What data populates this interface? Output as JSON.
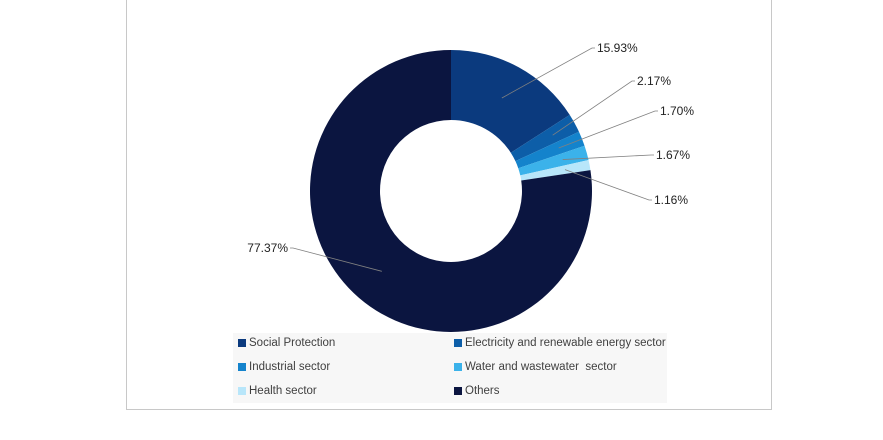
{
  "chart_data": {
    "type": "pie",
    "donut": true,
    "title": "",
    "slices": [
      {
        "name": "Social Protection",
        "value": 15.93,
        "label": "15.93%",
        "color": "#0b3a7e"
      },
      {
        "name": "Electricity and renewable energy sector",
        "value": 2.17,
        "label": "2.17%",
        "color": "#0d5ea8"
      },
      {
        "name": "Industrial sector",
        "value": 1.7,
        "label": "1.70%",
        "color": "#1483cc"
      },
      {
        "name": "Water and wastewater  sector",
        "value": 1.67,
        "label": "1.67%",
        "color": "#3bb2ea"
      },
      {
        "name": "Health sector",
        "value": 1.16,
        "label": "1.16%",
        "color": "#b8e6fa"
      },
      {
        "name": "Others",
        "value": 77.37,
        "label": "77.37%",
        "color": "#0b1540"
      }
    ],
    "legend_position": "bottom"
  }
}
